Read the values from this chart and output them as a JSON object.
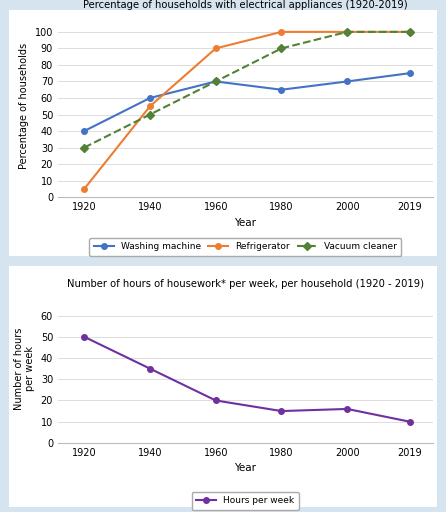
{
  "years": [
    1920,
    1940,
    1960,
    1980,
    2000,
    2019
  ],
  "washing_machine": [
    40,
    60,
    70,
    65,
    70,
    75
  ],
  "refrigerator": [
    5,
    55,
    90,
    100,
    100,
    100
  ],
  "vacuum_cleaner": [
    30,
    50,
    70,
    90,
    100,
    100
  ],
  "hours_per_week": [
    50,
    35,
    20,
    15,
    16,
    10
  ],
  "title1": "Percentage of households with electrical appliances (1920-2019)",
  "title2": "Number of hours of housework* per week, per household (1920 - 2019)",
  "ylabel1": "Percentage of households",
  "ylabel2": "Number of hours\nper week",
  "xlabel": "Year",
  "ylim1": [
    0,
    110
  ],
  "ylim2": [
    0,
    70
  ],
  "yticks1": [
    0,
    10,
    20,
    30,
    40,
    50,
    60,
    70,
    80,
    90,
    100
  ],
  "yticks2": [
    0,
    10,
    20,
    30,
    40,
    50,
    60
  ],
  "color_washing": "#4472C4",
  "color_fridge": "#ED7D31",
  "color_vacuum": "#538135",
  "color_hours": "#7030A0",
  "bg_color": "#D6E4F0",
  "plot_bg": "#FFFFFF"
}
